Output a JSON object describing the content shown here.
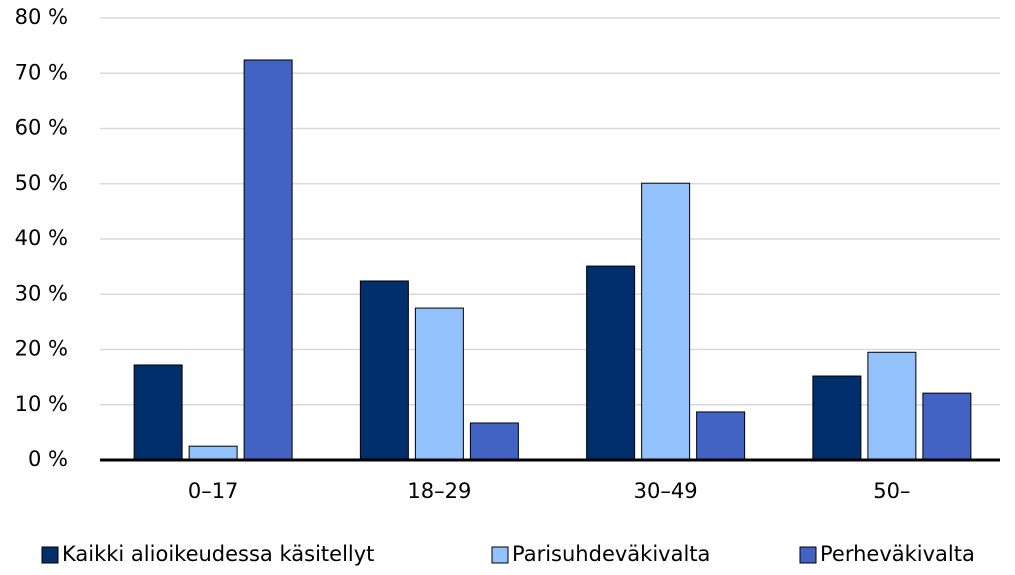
{
  "chart_data": {
    "type": "bar",
    "categories": [
      "0–17",
      "18–29",
      "30–49",
      "50–"
    ],
    "series": [
      {
        "name": "Kaikki alioikeudessa käsitellyt",
        "color": "#002f6c",
        "values": [
          17.2,
          32.4,
          35.1,
          15.2
        ]
      },
      {
        "name": "Parisuhdeväkivalta",
        "color": "#93c1fb",
        "values": [
          2.5,
          27.5,
          50.1,
          19.5
        ]
      },
      {
        "name": "Perheväkivalta",
        "color": "#4263c4",
        "values": [
          72.4,
          6.7,
          8.7,
          12.1
        ]
      }
    ],
    "ylim": [
      0,
      80
    ],
    "yticks": [
      {
        "value": 0,
        "label": "0 %"
      },
      {
        "value": 10,
        "label": "10 %"
      },
      {
        "value": 20,
        "label": "20 %"
      },
      {
        "value": 30,
        "label": "30 %"
      },
      {
        "value": 40,
        "label": "40 %"
      },
      {
        "value": 50,
        "label": "50 %"
      },
      {
        "value": 60,
        "label": "60 %"
      },
      {
        "value": 70,
        "label": "70 %"
      },
      {
        "value": 80,
        "label": "80 %"
      }
    ],
    "grid": true,
    "legend": "bottom"
  }
}
